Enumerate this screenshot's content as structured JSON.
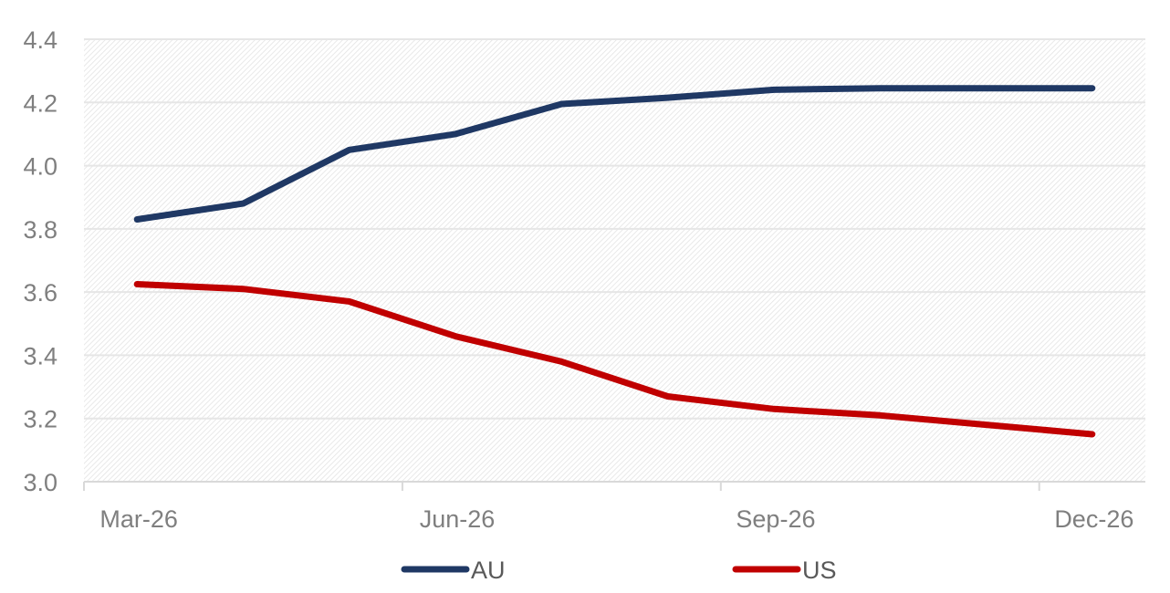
{
  "chart_data": {
    "type": "line",
    "title": "",
    "xlabel": "",
    "ylabel": "",
    "x": [
      "Mar-26",
      "Apr-26",
      "May-26",
      "Jun-26",
      "Jul-26",
      "Aug-26",
      "Sep-26",
      "Oct-26",
      "Nov-26",
      "Dec-26"
    ],
    "x_tick_labels": [
      "Mar-26",
      "Jun-26",
      "Sep-26",
      "Dec-26"
    ],
    "ylim": [
      3.0,
      4.4
    ],
    "y_ticks": [
      "3.0",
      "3.2",
      "3.4",
      "3.6",
      "3.8",
      "4.0",
      "4.2",
      "4.4"
    ],
    "grid": true,
    "legend_position": "bottom",
    "series": [
      {
        "name": "AU",
        "color": "#1f3864",
        "values": [
          3.83,
          3.88,
          4.05,
          4.1,
          4.195,
          4.215,
          4.24,
          4.245,
          4.245,
          4.245
        ]
      },
      {
        "name": "US",
        "color": "#c00000",
        "values": [
          3.625,
          3.61,
          3.57,
          3.46,
          3.38,
          3.27,
          3.23,
          3.21,
          3.18,
          3.15
        ]
      }
    ]
  }
}
